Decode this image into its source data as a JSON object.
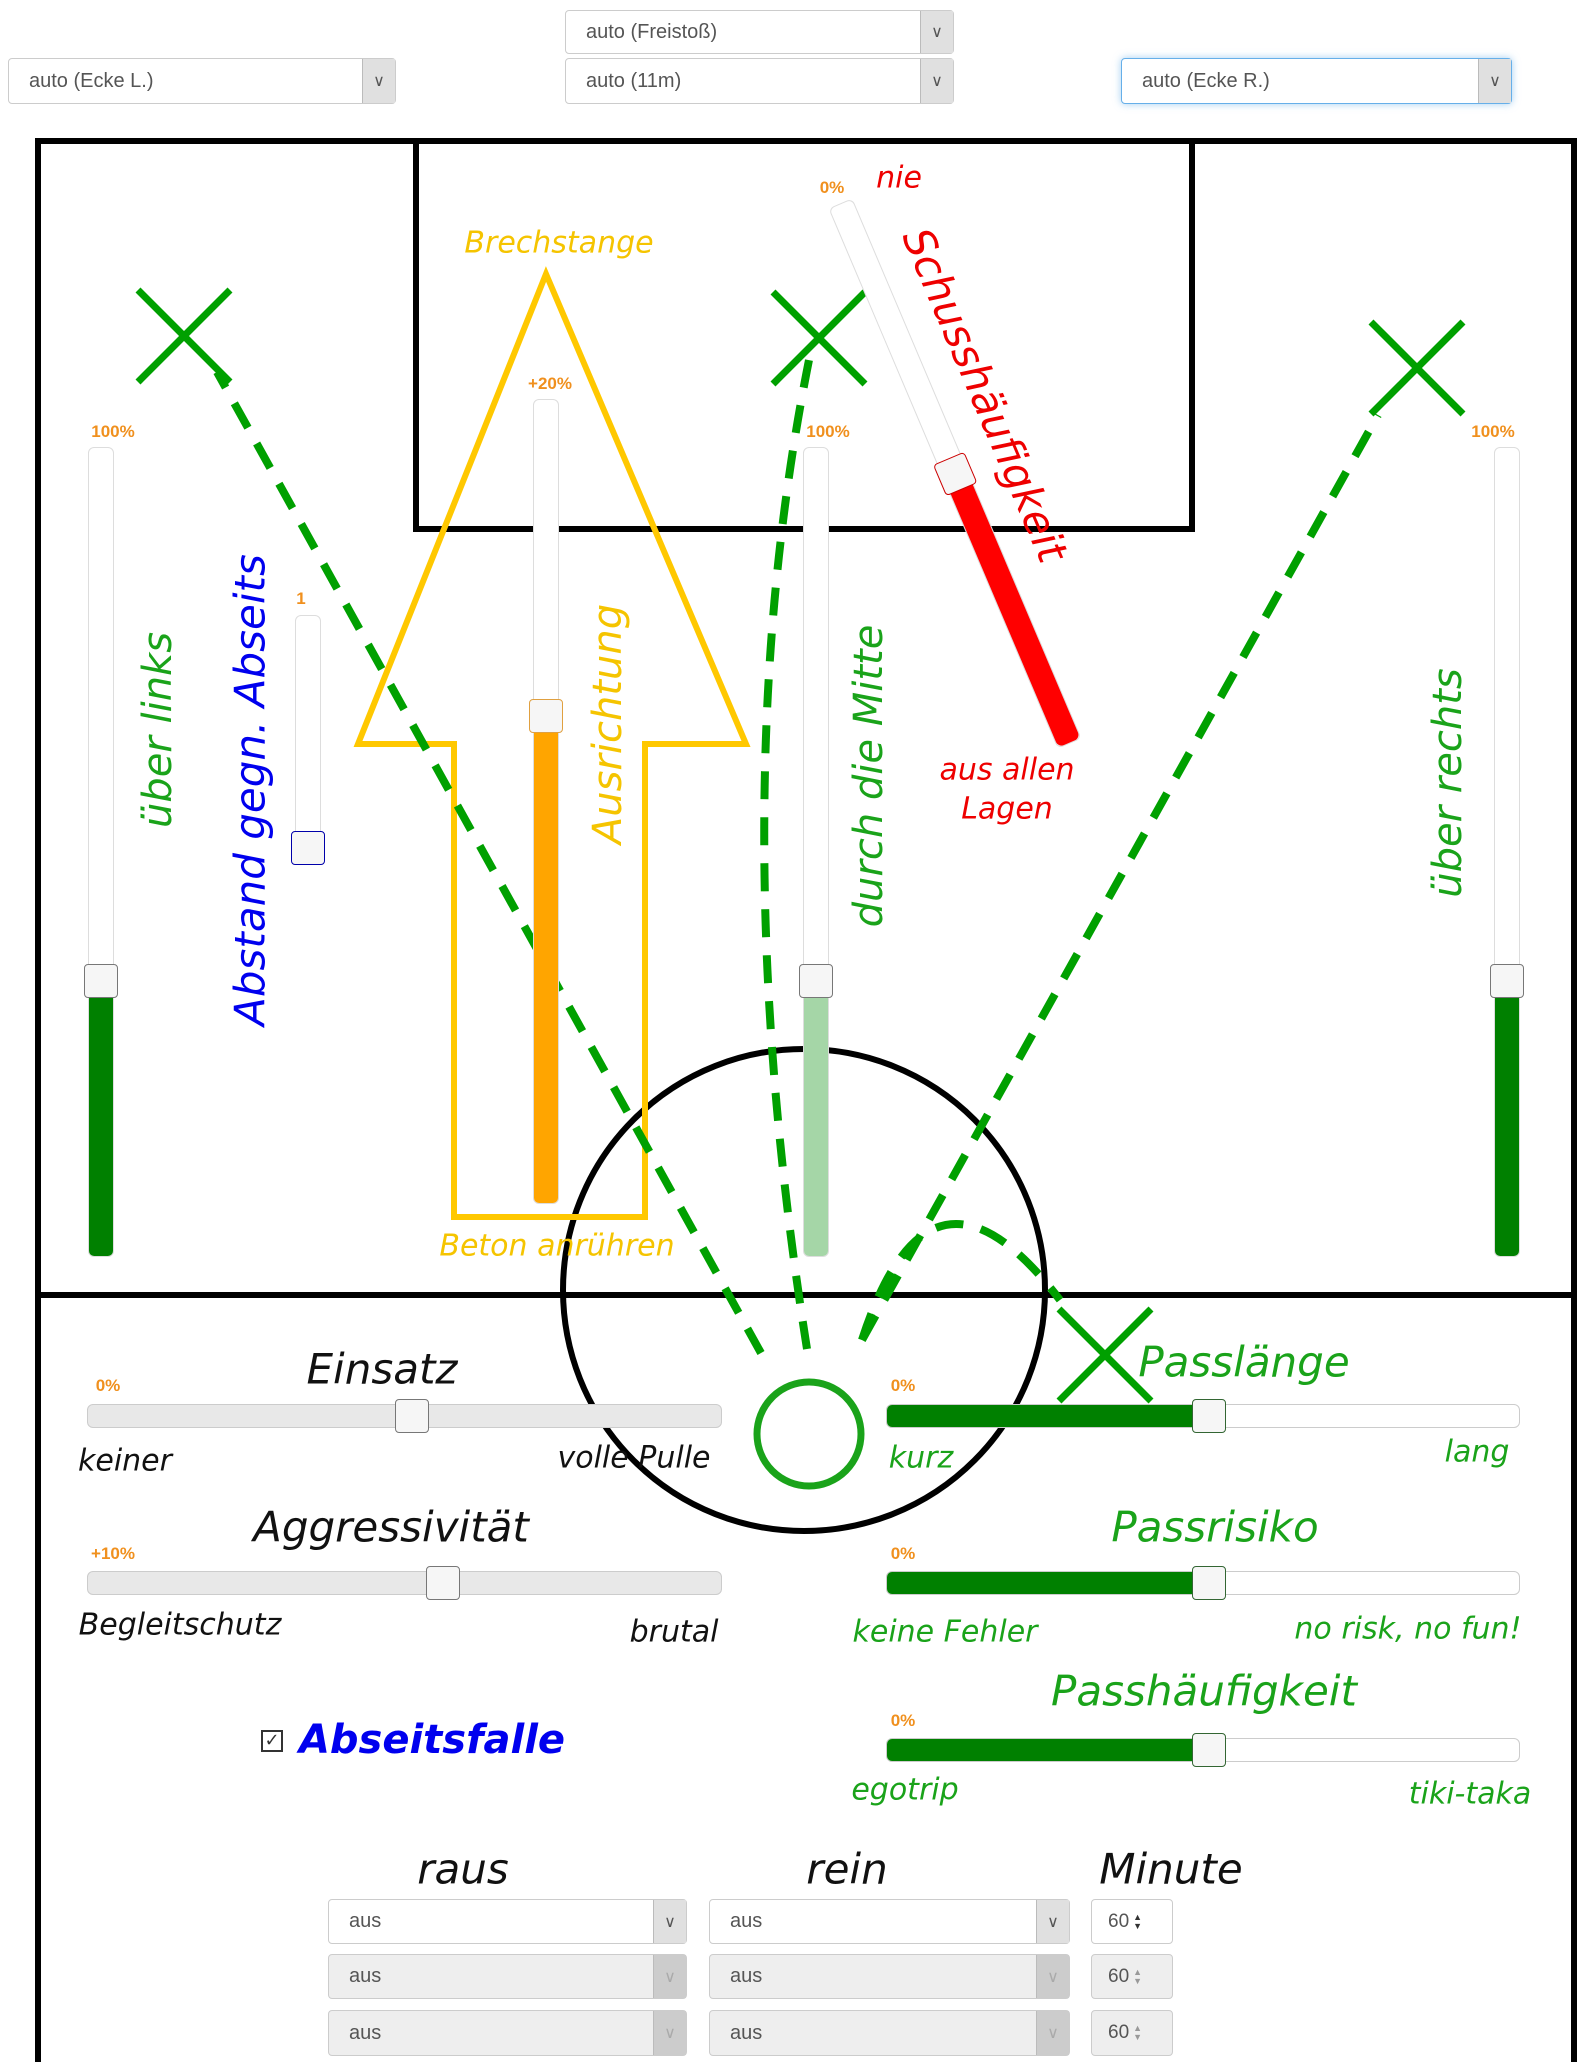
{
  "setpieces": {
    "corner_left": "auto (Ecke L.)",
    "freekick": "auto (Freistoß)",
    "penalty": "auto (11m)",
    "corner_right": "auto (Ecke R.)"
  },
  "field": {
    "left_wing": {
      "label": "über links",
      "value_label": "100%",
      "level": 0.35
    },
    "center": {
      "label": "durch die Mitte",
      "value_label": "100%",
      "level": 0.35
    },
    "right_wing": {
      "label": "über rechts",
      "value_label": "100%",
      "level": 0.35
    },
    "offside_distance": {
      "label": "Abstand gegn. Abseits",
      "value_label": "1",
      "level": 0.05
    },
    "orientation": {
      "label": "Ausrichtung",
      "top": "Brechstange",
      "bottom": "Beton anrühren",
      "value_label": "+20%",
      "level": 0.6
    },
    "shooting": {
      "label": "Schusshäufigkeit",
      "top": "nie",
      "bottom_line1": "aus allen",
      "bottom_line2": "Lagen",
      "value_label": "0%",
      "level": 0.5
    }
  },
  "controls": {
    "effort": {
      "title": "Einsatz",
      "min": "keiner",
      "max": "volle Pulle",
      "value_label": "0%",
      "level": 0.5
    },
    "aggression": {
      "title": "Aggressivität",
      "min": "Begleitschutz",
      "max": "brutal",
      "value_label": "+10%",
      "level": 0.55
    },
    "pass_length": {
      "title": "Passlänge",
      "min": "kurz",
      "max": "lang",
      "value_label": "0%",
      "level": 0.5
    },
    "pass_risk": {
      "title": "Passrisiko",
      "min": "keine Fehler",
      "max": "no risk, no fun!",
      "value_label": "0%",
      "level": 0.5
    },
    "pass_frequency": {
      "title": "Passhäufigkeit",
      "min": "egotrip",
      "max": "tiki-taka",
      "value_label": "0%",
      "level": 0.5
    },
    "offside_trap": {
      "label": "Abseitsfalle",
      "checked": true
    }
  },
  "substitutions": {
    "headers": {
      "out": "raus",
      "in": "rein",
      "minute": "Minute"
    },
    "rows": [
      {
        "out": "aus",
        "in": "aus",
        "minute": "60"
      },
      {
        "out": "aus",
        "in": "aus",
        "minute": "60"
      },
      {
        "out": "aus",
        "in": "aus",
        "minute": "60"
      }
    ]
  },
  "colors": {
    "green": "#008000",
    "light_green": "#a5d6a7",
    "orange": "#ffa500",
    "red": "#ff0000",
    "yellow": "#ffc800",
    "blue": "#0000ee"
  }
}
